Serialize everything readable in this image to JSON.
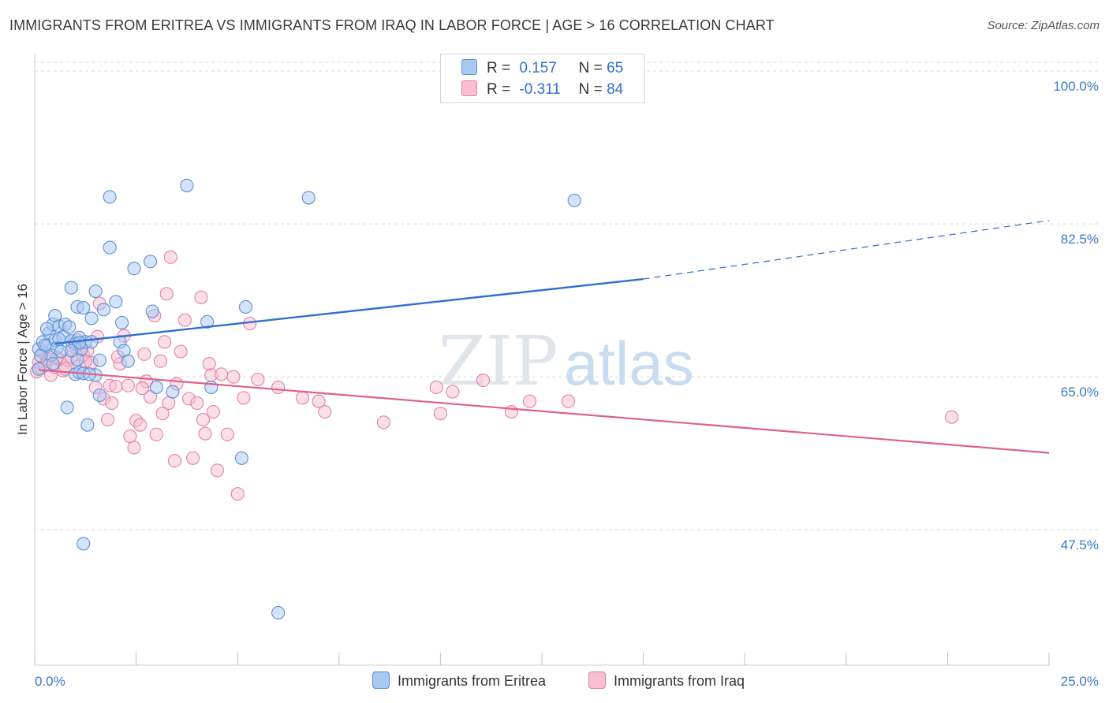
{
  "title": "IMMIGRANTS FROM ERITREA VS IMMIGRANTS FROM IRAQ IN LABOR FORCE | AGE > 16 CORRELATION CHART",
  "source": "Source: ZipAtlas.com",
  "watermark": {
    "zip": "ZIP",
    "atlas": "atlas"
  },
  "legend": {
    "rows": [
      {
        "r_label": "R =",
        "r_value": "0.157",
        "n_label": "N =",
        "n_value": "65",
        "color": "#a9c8f0",
        "stroke": "#5b8fd6"
      },
      {
        "r_label": "R =",
        "r_value": "-0.311",
        "n_label": "N =",
        "n_value": "84",
        "color": "#f7bfd1",
        "stroke": "#e57fa3"
      }
    ]
  },
  "bottom_legend": [
    {
      "label": "Immigrants from Eritrea",
      "color": "#a9c8f0",
      "stroke": "#5b8fd6"
    },
    {
      "label": "Immigrants from Iraq",
      "color": "#f7bfd1",
      "stroke": "#e57fa3"
    }
  ],
  "chart_data": {
    "type": "scatter",
    "ylabel": "In Labor Force | Age > 16",
    "xlim": [
      0,
      25
    ],
    "ylim": [
      32,
      102
    ],
    "y_ticks": [
      {
        "value": 100,
        "label": "100.0%"
      },
      {
        "value": 82.5,
        "label": "82.5%"
      },
      {
        "value": 65,
        "label": "65.0%"
      },
      {
        "value": 47.5,
        "label": "47.5%"
      }
    ],
    "x_tick_labels": [
      {
        "value": 0,
        "label": "0.0%"
      },
      {
        "value": 25,
        "label": "25.0%"
      }
    ],
    "x_minor_ticks": [
      0,
      2.5,
      5,
      7.5,
      10,
      12.5,
      15,
      17.5,
      20,
      22.5,
      25
    ],
    "grid": true,
    "series": [
      {
        "name": "Immigrants from Eritrea",
        "color": "#5b8fd6",
        "fill": "#a9c8f0",
        "trend": {
          "x1": 0.5,
          "y1": 68.8,
          "x2": 15.0,
          "y2": 76.2,
          "dash_to_x": 25.0,
          "dash_to_y": 82.9,
          "color": "#2f6fd1"
        },
        "points": [
          [
            0.1,
            68.2
          ],
          [
            0.2,
            69.0
          ],
          [
            0.3,
            68.5
          ],
          [
            0.35,
            70.0
          ],
          [
            0.4,
            67.5
          ],
          [
            0.45,
            71.0
          ],
          [
            0.5,
            69.2
          ],
          [
            0.5,
            72.0
          ],
          [
            0.55,
            68.3
          ],
          [
            0.6,
            70.8
          ],
          [
            0.65,
            67.9
          ],
          [
            0.7,
            69.6
          ],
          [
            0.75,
            71.0
          ],
          [
            0.8,
            61.5
          ],
          [
            0.85,
            70.7
          ],
          [
            0.9,
            69.1
          ],
          [
            0.9,
            75.2
          ],
          [
            1.0,
            65.3
          ],
          [
            1.0,
            68.8
          ],
          [
            1.05,
            67.0
          ],
          [
            1.05,
            73.0
          ],
          [
            1.1,
            65.5
          ],
          [
            1.1,
            69.5
          ],
          [
            1.15,
            68.2
          ],
          [
            1.2,
            72.9
          ],
          [
            1.2,
            65.4
          ],
          [
            1.25,
            69.0
          ],
          [
            1.3,
            59.5
          ],
          [
            1.4,
            71.7
          ],
          [
            1.4,
            69.0
          ],
          [
            1.5,
            74.8
          ],
          [
            1.5,
            65.2
          ],
          [
            1.6,
            66.9
          ],
          [
            1.6,
            62.9
          ],
          [
            1.7,
            72.7
          ],
          [
            1.85,
            85.6
          ],
          [
            1.85,
            79.8
          ],
          [
            2.0,
            73.6
          ],
          [
            2.1,
            69.0
          ],
          [
            2.15,
            71.2
          ],
          [
            2.2,
            68.0
          ],
          [
            2.3,
            66.8
          ],
          [
            2.45,
            77.4
          ],
          [
            2.85,
            78.2
          ],
          [
            2.9,
            72.5
          ],
          [
            3.0,
            63.8
          ],
          [
            3.4,
            63.3
          ],
          [
            3.75,
            86.9
          ],
          [
            4.25,
            71.3
          ],
          [
            4.35,
            63.8
          ],
          [
            5.1,
            55.7
          ],
          [
            5.2,
            73.0
          ],
          [
            6.0,
            38.0
          ],
          [
            6.75,
            85.5
          ],
          [
            13.3,
            85.2
          ],
          [
            1.2,
            45.9
          ],
          [
            0.25,
            68.6
          ],
          [
            0.9,
            68.0
          ],
          [
            1.35,
            65.3
          ],
          [
            0.15,
            67.4
          ],
          [
            0.3,
            70.5
          ],
          [
            0.6,
            69.3
          ],
          [
            1.1,
            68.9
          ],
          [
            0.45,
            66.5
          ],
          [
            0.1,
            65.9
          ]
        ]
      },
      {
        "name": "Immigrants from Iraq",
        "color": "#e57fa3",
        "fill": "#f7bfd1",
        "trend": {
          "x1": 0.1,
          "y1": 65.8,
          "x2": 25.0,
          "y2": 56.3,
          "color": "#e0608d"
        },
        "points": [
          [
            0.05,
            65.6
          ],
          [
            0.1,
            66.7
          ],
          [
            0.15,
            66.0
          ],
          [
            0.2,
            67.8
          ],
          [
            0.3,
            66.8
          ],
          [
            0.4,
            65.2
          ],
          [
            0.5,
            66.1
          ],
          [
            0.6,
            67.0
          ],
          [
            0.7,
            65.7
          ],
          [
            0.8,
            66.9
          ],
          [
            0.9,
            67.3
          ],
          [
            1.0,
            68.4
          ],
          [
            1.1,
            66.2
          ],
          [
            1.2,
            67.5
          ],
          [
            1.3,
            68.0
          ],
          [
            1.4,
            66.6
          ],
          [
            1.5,
            63.8
          ],
          [
            1.55,
            69.6
          ],
          [
            1.6,
            73.4
          ],
          [
            1.7,
            62.5
          ],
          [
            1.8,
            60.1
          ],
          [
            1.85,
            64.0
          ],
          [
            1.9,
            62.0
          ],
          [
            2.0,
            63.9
          ],
          [
            2.1,
            66.5
          ],
          [
            2.2,
            69.7
          ],
          [
            2.3,
            64.0
          ],
          [
            2.35,
            58.2
          ],
          [
            2.45,
            56.9
          ],
          [
            2.5,
            60.0
          ],
          [
            2.6,
            59.5
          ],
          [
            2.7,
            67.6
          ],
          [
            2.75,
            64.5
          ],
          [
            2.85,
            62.7
          ],
          [
            2.95,
            72.0
          ],
          [
            3.0,
            58.4
          ],
          [
            3.1,
            66.8
          ],
          [
            3.2,
            69.0
          ],
          [
            3.25,
            74.5
          ],
          [
            3.3,
            62.0
          ],
          [
            3.35,
            78.7
          ],
          [
            3.45,
            55.4
          ],
          [
            3.5,
            64.2
          ],
          [
            3.6,
            67.9
          ],
          [
            3.7,
            71.5
          ],
          [
            3.8,
            62.5
          ],
          [
            3.9,
            55.7
          ],
          [
            4.0,
            62.0
          ],
          [
            4.1,
            74.1
          ],
          [
            4.15,
            60.1
          ],
          [
            4.2,
            58.5
          ],
          [
            4.3,
            66.5
          ],
          [
            4.35,
            65.2
          ],
          [
            4.4,
            61.0
          ],
          [
            4.5,
            54.3
          ],
          [
            4.6,
            65.3
          ],
          [
            4.75,
            58.4
          ],
          [
            4.9,
            65.0
          ],
          [
            5.0,
            51.6
          ],
          [
            5.15,
            62.6
          ],
          [
            5.3,
            71.1
          ],
          [
            5.5,
            64.7
          ],
          [
            6.0,
            63.8
          ],
          [
            6.6,
            62.6
          ],
          [
            7.0,
            62.2
          ],
          [
            7.15,
            61.0
          ],
          [
            8.6,
            59.8
          ],
          [
            9.9,
            63.8
          ],
          [
            10.0,
            60.8
          ],
          [
            10.3,
            63.3
          ],
          [
            11.05,
            64.6
          ],
          [
            11.75,
            61.0
          ],
          [
            12.2,
            62.2
          ],
          [
            13.15,
            62.2
          ],
          [
            22.6,
            60.4
          ],
          [
            0.35,
            67.0
          ],
          [
            0.55,
            67.2
          ],
          [
            0.75,
            65.9
          ],
          [
            1.25,
            66.8
          ],
          [
            2.05,
            67.3
          ],
          [
            2.65,
            63.7
          ],
          [
            1.05,
            69.2
          ],
          [
            3.15,
            60.8
          ],
          [
            0.25,
            66.3
          ]
        ]
      }
    ]
  }
}
